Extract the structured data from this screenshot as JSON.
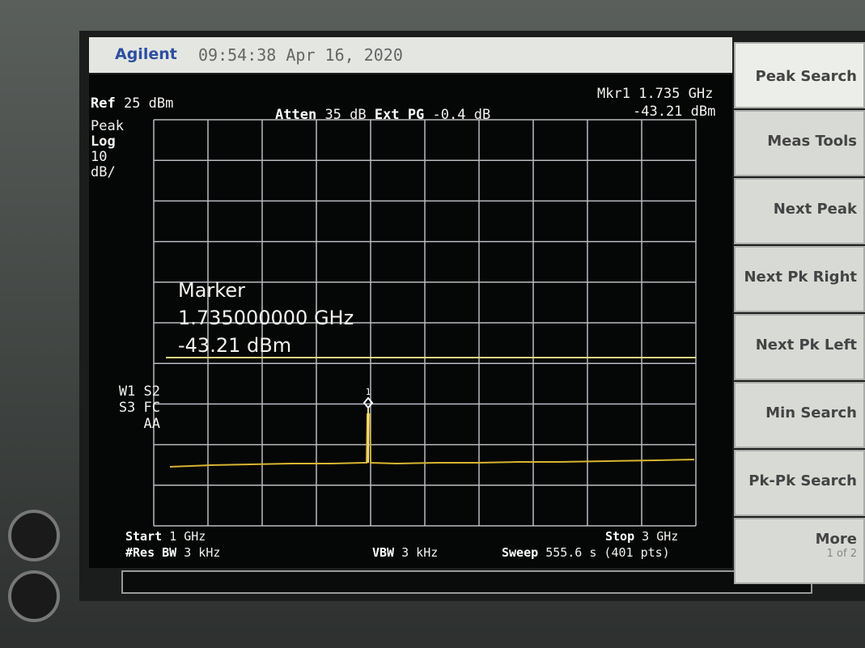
{
  "header": {
    "brand": "Agilent",
    "timestamp": "09:54:38 Apr 16, 2020"
  },
  "settings": {
    "ref": {
      "label": "Ref",
      "value": "25 dBm"
    },
    "atten": {
      "label": "Atten",
      "value": "35 dB"
    },
    "ext_pg": {
      "label": "Ext PG",
      "value": "-0.4 dB"
    },
    "marker_readout": {
      "name": "Mkr1",
      "freq": "1.735 GHz",
      "level": "-43.21 dBm"
    }
  },
  "left_panel": {
    "detector": "Peak",
    "scale_type": "Log",
    "scale_value": "10",
    "scale_unit": "dB/",
    "status": [
      "W1 S2",
      "S3 FC",
      "AA"
    ]
  },
  "marker_box": {
    "title": "Marker",
    "frequency": "1.735000000 GHz",
    "level": "-43.21 dBm",
    "tag": "1"
  },
  "footer": {
    "start": {
      "label": "Start",
      "value": "1 GHz"
    },
    "res_bw": {
      "label": "#Res BW",
      "value": "3 kHz"
    },
    "vbw": {
      "label": "VBW",
      "value": "3 kHz"
    },
    "stop": {
      "label": "Stop",
      "value": "3 GHz"
    },
    "sweep": {
      "label": "Sweep",
      "value": "555.6 s (401 pts)"
    }
  },
  "softkeys": [
    "Peak Search",
    "Meas Tools",
    "Next Peak",
    "Next Pk Right",
    "Next Pk Left",
    "Min Search",
    "Pk-Pk Search",
    "More"
  ],
  "softkey_page": "1 of 2"
}
